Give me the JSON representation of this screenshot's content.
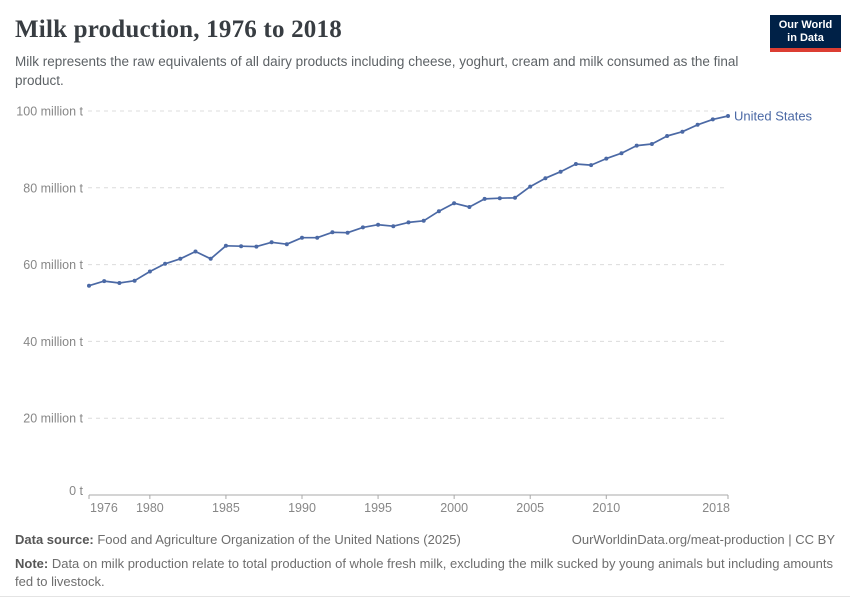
{
  "header": {
    "title": "Milk production, 1976 to 2018",
    "subtitle": "Milk represents the raw equivalents of all dairy products including cheese, yoghurt, cream and milk consumed as the final product.",
    "logo": {
      "line1": "Our World",
      "line2": "in Data",
      "bg": "#002147",
      "accent": "#dc3e32"
    }
  },
  "chart_data": {
    "type": "line",
    "title": "Milk production, 1976 to 2018",
    "xlabel": "",
    "ylabel": "",
    "unit": "million t",
    "grid": "horizontal-dashed",
    "legend_position": "end-of-line",
    "xlim": [
      1976,
      2018
    ],
    "ylim": [
      0,
      100
    ],
    "x_ticks": [
      1976,
      1980,
      1985,
      1990,
      1995,
      2000,
      2005,
      2010,
      2018
    ],
    "y_ticks": [
      {
        "value": 0,
        "label": "0 t"
      },
      {
        "value": 20,
        "label": "20 million t"
      },
      {
        "value": 40,
        "label": "40 million t"
      },
      {
        "value": 60,
        "label": "60 million t"
      },
      {
        "value": 80,
        "label": "80 million t"
      },
      {
        "value": 100,
        "label": "100 million t"
      }
    ],
    "years": [
      1976,
      1977,
      1978,
      1979,
      1980,
      1981,
      1982,
      1983,
      1984,
      1985,
      1986,
      1987,
      1988,
      1989,
      1990,
      1991,
      1992,
      1993,
      1994,
      1995,
      1996,
      1997,
      1998,
      1999,
      2000,
      2001,
      2002,
      2003,
      2004,
      2005,
      2006,
      2007,
      2008,
      2009,
      2010,
      2011,
      2012,
      2013,
      2014,
      2015,
      2016,
      2017,
      2018
    ],
    "series": [
      {
        "name": "United States",
        "color": "#4b69a5",
        "values": [
          54.5,
          55.7,
          55.2,
          55.8,
          58.2,
          60.2,
          61.5,
          63.4,
          61.5,
          64.9,
          64.8,
          64.7,
          65.8,
          65.3,
          67.0,
          67.0,
          68.4,
          68.3,
          69.7,
          70.4,
          70.0,
          71.0,
          71.4,
          73.9,
          76.0,
          75.0,
          77.1,
          77.3,
          77.4,
          80.3,
          82.5,
          84.2,
          86.2,
          85.9,
          87.6,
          89.0,
          91.0,
          91.4,
          93.5,
          94.6,
          96.4,
          97.8,
          98.7
        ]
      }
    ],
    "axis_color": "#a8a8a8",
    "grid_color": "#dcdcdc",
    "tick_label_color": "#878787"
  },
  "footer": {
    "datasource_label": "Data source:",
    "datasource_text": " Food and Agriculture Organization of the United Nations (2025)",
    "link": "OurWorldinData.org/meat-production | CC BY",
    "note_label": "Note:",
    "note_text": " Data on milk production relate to total production of whole fresh milk, excluding the milk sucked by young animals but including amounts fed to livestock."
  }
}
